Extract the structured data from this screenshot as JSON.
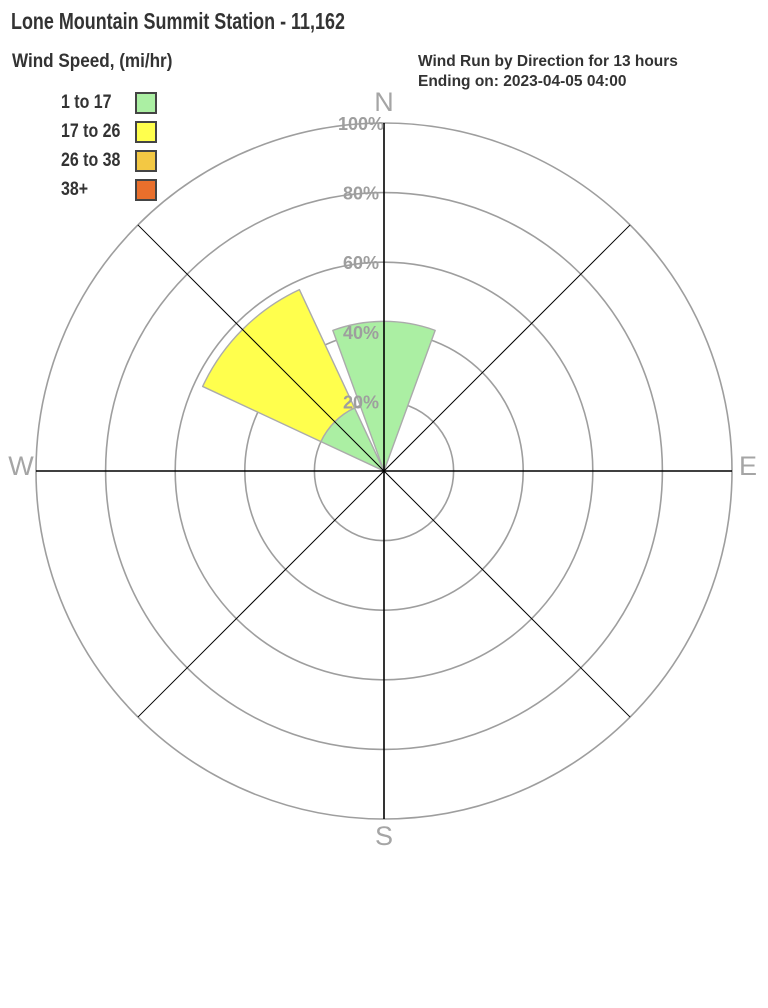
{
  "chart_data": {
    "type": "windrose",
    "title": "Lone Mountain Summit Station - 11,162",
    "legend_title": "Wind Speed, (mi/hr)",
    "subtitle_lines": [
      "Wind Run by Direction for 13 hours",
      "Ending on: 2023-04-05 04:00"
    ],
    "speed_bins": [
      {
        "label": "1 to 17",
        "color": "#ABEFA3"
      },
      {
        "label": "17 to 26",
        "color": "#FFFF4D"
      },
      {
        "label": "26 to 38",
        "color": "#F3C843"
      },
      {
        "label": "38+",
        "color": "#E96F2C"
      }
    ],
    "compass_labels": [
      {
        "label": "N",
        "deg": 0
      },
      {
        "label": "E",
        "deg": 90
      },
      {
        "label": "S",
        "deg": 180
      },
      {
        "label": "W",
        "deg": 270
      }
    ],
    "rings": [
      {
        "pct": 20,
        "label": "20%"
      },
      {
        "pct": 40,
        "label": "40%"
      },
      {
        "pct": 60,
        "label": "60%"
      },
      {
        "pct": 80,
        "label": "80%"
      },
      {
        "pct": 100,
        "label": "100%"
      }
    ],
    "spokes_deg": [
      0,
      45,
      90,
      135,
      180,
      225,
      270,
      315
    ],
    "petal_width_deg": 40,
    "radial_range_pct": [
      0,
      100
    ],
    "grid": true,
    "legend_position": "top-left",
    "petals": [
      {
        "direction": "N",
        "center_deg": 0,
        "segments": [
          {
            "speed_bin": "1 to 17",
            "from_pct": 0,
            "to_pct": 43
          }
        ]
      },
      {
        "direction": "NW",
        "center_deg": 315,
        "segments": [
          {
            "speed_bin": "1 to 17",
            "from_pct": 0,
            "to_pct": 20
          },
          {
            "speed_bin": "17 to 26",
            "from_pct": 20,
            "to_pct": 57.5
          }
        ]
      }
    ],
    "colors": {
      "grid_line": "#9E9E9E",
      "petal_border": "#ABABAB",
      "spoke_line": "#000000",
      "compass_text": "#A5A5A5",
      "ring_text": "#9E9E9E",
      "heading_text": "#333333"
    }
  }
}
